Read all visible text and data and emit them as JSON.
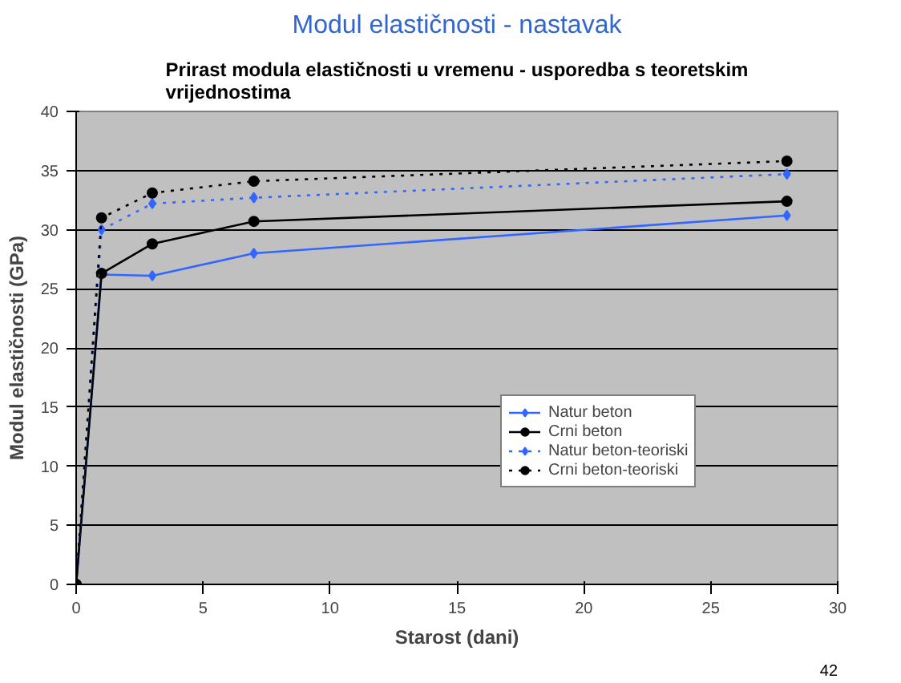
{
  "chart_data": {
    "type": "line",
    "title": "Modul elastičnosti - nastavak",
    "subtitle": "Prirast modula elastičnosti u vremenu - usporedba s teoretskim vrijednostima",
    "xlabel": "Starost (dani)",
    "ylabel": "Modul elastičnosti (GPa)",
    "x": [
      0,
      1,
      3,
      7,
      28
    ],
    "series": [
      {
        "name": "Natur beton",
        "color": "#3366ff",
        "marker": "diamond",
        "line_style": "solid",
        "values": [
          0,
          26.2,
          26.1,
          28.0,
          31.2
        ]
      },
      {
        "name": "Crni beton",
        "color": "#000000",
        "marker": "circle",
        "line_style": "solid",
        "values": [
          0,
          26.3,
          28.8,
          30.7,
          32.4
        ]
      },
      {
        "name": "Natur beton-teoriski",
        "color": "#3366ff",
        "marker": "diamond",
        "line_style": "dotted",
        "values": [
          0,
          30.0,
          32.2,
          32.7,
          34.7
        ]
      },
      {
        "name": "Crni beton-teoriski",
        "color": "#000000",
        "marker": "circle",
        "line_style": "dotted",
        "values": [
          0,
          31.0,
          33.1,
          34.1,
          35.8
        ]
      }
    ],
    "xlim": [
      0,
      30
    ],
    "xticks": [
      0,
      5,
      10,
      15,
      20,
      25,
      30
    ],
    "ylim": [
      0,
      40
    ],
    "yticks": [
      0,
      5,
      10,
      15,
      20,
      25,
      30,
      35,
      40
    ],
    "grid": "y",
    "legend": "right",
    "annotations": [
      "42"
    ]
  }
}
